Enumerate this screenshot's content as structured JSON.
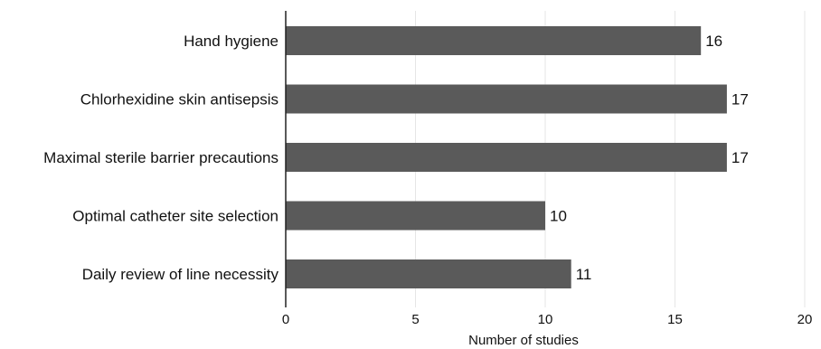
{
  "chart_data": {
    "type": "bar",
    "orientation": "horizontal",
    "categories": [
      "Hand hygiene",
      "Chlorhexidine skin antisepsis",
      "Maximal sterile barrier precautions",
      "Optimal catheter site selection",
      "Daily review of line necessity"
    ],
    "values": [
      16,
      17,
      17,
      10,
      11
    ],
    "data_labels": [
      "16",
      "17",
      "17",
      "10",
      "11"
    ],
    "xlabel": "Number of studies",
    "ylabel": "",
    "xlim": [
      0,
      20
    ],
    "xticks": [
      0,
      5,
      10,
      15,
      20
    ],
    "xtick_labels": [
      "0",
      "5",
      "10",
      "15",
      "20"
    ],
    "grid": "vertical",
    "legend": "none",
    "colors": {
      "bar": "#5a5a5a",
      "grid": "#e6e6e6",
      "axis": "#222222",
      "text": "#111111"
    }
  }
}
